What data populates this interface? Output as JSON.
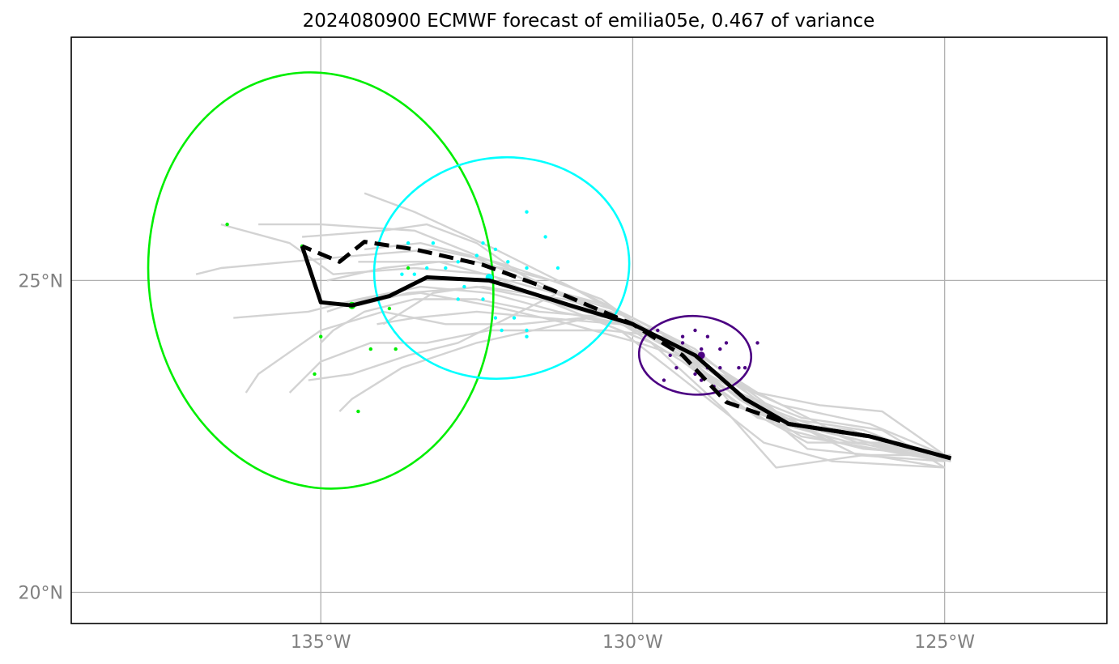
{
  "chart_data": {
    "type": "map-track",
    "title": "2024080900 ECMWF forecast of emilia05e, 0.467 of variance",
    "projection": "PlateCarree",
    "lon_range": [
      -139,
      -122.4
    ],
    "lat_range": [
      19.5,
      28.9
    ],
    "x_ticks": [
      {
        "value": -135,
        "label": "135°W"
      },
      {
        "value": -130,
        "label": "130°W"
      },
      {
        "value": -125,
        "label": "125°W"
      }
    ],
    "y_ticks": [
      {
        "value": 25,
        "label": "25°N"
      },
      {
        "value": 20,
        "label": "20°N"
      }
    ],
    "grid": true,
    "colors": {
      "members": "#d3d3d3",
      "mean": "#000000",
      "hres": "#000000",
      "group_early": "#4b0082",
      "group_mid": "#00ffff",
      "group_late": "#00ee00",
      "grid": "#b0b0b0",
      "tick_text": "#808080"
    },
    "ensemble_mean_track": [
      [
        -124.9,
        22.15
      ],
      [
        -126.2,
        22.5
      ],
      [
        -127.5,
        22.7
      ],
      [
        -128.2,
        23.1
      ],
      [
        -129.0,
        23.8
      ],
      [
        -130.0,
        24.3
      ],
      [
        -131.0,
        24.6
      ],
      [
        -131.8,
        24.85
      ],
      [
        -132.3,
        25.0
      ],
      [
        -133.3,
        25.05
      ],
      [
        -133.9,
        24.75
      ],
      [
        -134.5,
        24.6
      ],
      [
        -135.0,
        24.65
      ],
      [
        -135.3,
        25.55
      ]
    ],
    "hres_track": [
      [
        -124.9,
        22.15
      ],
      [
        -126.2,
        22.5
      ],
      [
        -127.5,
        22.7
      ],
      [
        -128.5,
        23.05
      ],
      [
        -129.2,
        23.8
      ],
      [
        -130.0,
        24.3
      ],
      [
        -131.3,
        24.85
      ],
      [
        -132.4,
        25.25
      ],
      [
        -133.5,
        25.5
      ],
      [
        -134.3,
        25.62
      ],
      [
        -134.7,
        25.3
      ],
      [
        -135.3,
        25.55
      ]
    ],
    "member_tracks": [
      [
        [
          -125,
          22.2
        ],
        [
          -126.5,
          22.4
        ],
        [
          -128,
          22.8
        ],
        [
          -129.2,
          23.7
        ],
        [
          -130.5,
          24.5
        ],
        [
          -132,
          25.2
        ],
        [
          -133.5,
          25.8
        ],
        [
          -135,
          25.9
        ],
        [
          -136,
          25.9
        ]
      ],
      [
        [
          -125,
          22.1
        ],
        [
          -126.4,
          22.2
        ],
        [
          -127.8,
          22.9
        ],
        [
          -129.0,
          23.9
        ],
        [
          -130.6,
          24.7
        ],
        [
          -132.2,
          25.5
        ],
        [
          -133.5,
          26.1
        ],
        [
          -134.3,
          26.4
        ]
      ],
      [
        [
          -125,
          22.0
        ],
        [
          -126.8,
          22.1
        ],
        [
          -127.9,
          22.4
        ],
        [
          -129.3,
          23.5
        ],
        [
          -130.2,
          24.2
        ],
        [
          -131.2,
          24.6
        ],
        [
          -132.3,
          25.1
        ],
        [
          -133.5,
          25.2
        ],
        [
          -134.8,
          25.1
        ],
        [
          -135.5,
          25.6
        ],
        [
          -136.6,
          25.9
        ]
      ],
      [
        [
          -124.9,
          22.1
        ],
        [
          -126.0,
          22.4
        ],
        [
          -127.2,
          22.4
        ],
        [
          -128.3,
          23.0
        ],
        [
          -129.5,
          24.0
        ],
        [
          -130.4,
          24.6
        ],
        [
          -131.5,
          24.9
        ],
        [
          -132.5,
          25.6
        ],
        [
          -133.3,
          25.9
        ],
        [
          -134.0,
          25.8
        ],
        [
          -135.3,
          25.7
        ]
      ],
      [
        [
          -125,
          22.2
        ],
        [
          -126.2,
          22.7
        ],
        [
          -127.6,
          23.0
        ],
        [
          -128.5,
          23.4
        ],
        [
          -129.6,
          24.2
        ],
        [
          -130.8,
          24.4
        ],
        [
          -131.8,
          24.3
        ],
        [
          -133.0,
          24.3
        ],
        [
          -134.0,
          24.5
        ],
        [
          -135.0,
          24.2
        ],
        [
          -136.0,
          23.5
        ],
        [
          -136.2,
          23.2
        ]
      ],
      [
        [
          -125,
          22.1
        ],
        [
          -126.5,
          22.6
        ],
        [
          -127.4,
          22.7
        ],
        [
          -128.6,
          23.3
        ],
        [
          -129.4,
          23.9
        ],
        [
          -130.3,
          24.4
        ],
        [
          -131.5,
          24.5
        ],
        [
          -132.5,
          24.7
        ],
        [
          -133.5,
          24.7
        ],
        [
          -134.3,
          24.5
        ],
        [
          -134.8,
          24.2
        ],
        [
          -135.0,
          24.0
        ]
      ],
      [
        [
          -125,
          22.2
        ],
        [
          -126.3,
          22.3
        ],
        [
          -127.5,
          22.6
        ],
        [
          -128.7,
          23.4
        ],
        [
          -129.5,
          24.1
        ],
        [
          -130.4,
          24.2
        ],
        [
          -131.3,
          24.2
        ],
        [
          -132.3,
          24.2
        ],
        [
          -133.3,
          24.0
        ],
        [
          -134.2,
          24.0
        ],
        [
          -135.0,
          23.7
        ],
        [
          -135.5,
          23.2
        ]
      ],
      [
        [
          -125,
          22.0
        ],
        [
          -126.0,
          22.6
        ],
        [
          -127.3,
          22.8
        ],
        [
          -128.3,
          23.2
        ],
        [
          -129.2,
          24.0
        ],
        [
          -130.2,
          24.5
        ],
        [
          -131.2,
          24.8
        ],
        [
          -132.0,
          24.4
        ],
        [
          -132.8,
          24.0
        ],
        [
          -133.6,
          23.8
        ],
        [
          -134.5,
          23.5
        ],
        [
          -135.2,
          23.4
        ]
      ],
      [
        [
          -124.9,
          22.2
        ],
        [
          -126.3,
          22.2
        ],
        [
          -127.7,
          22.0
        ],
        [
          -128.5,
          22.9
        ],
        [
          -129.7,
          24.0
        ],
        [
          -130.7,
          24.4
        ],
        [
          -131.6,
          24.2
        ],
        [
          -132.5,
          24.0
        ],
        [
          -133.7,
          23.6
        ],
        [
          -134.5,
          23.1
        ],
        [
          -134.7,
          22.9
        ]
      ],
      [
        [
          -125,
          22.1
        ],
        [
          -126.6,
          22.5
        ],
        [
          -127.8,
          23.1
        ],
        [
          -128.8,
          23.6
        ],
        [
          -129.9,
          24.3
        ],
        [
          -131.0,
          24.9
        ],
        [
          -132.2,
          25.3
        ],
        [
          -133.2,
          25.5
        ],
        [
          -134.4,
          25.4
        ],
        [
          -135.5,
          25.3
        ],
        [
          -136.6,
          25.2
        ],
        [
          -137.0,
          25.1
        ]
      ],
      [
        [
          -125,
          22.2
        ],
        [
          -126.1,
          22.5
        ],
        [
          -127.1,
          22.6
        ],
        [
          -128.2,
          23.1
        ],
        [
          -129.3,
          24.0
        ],
        [
          -130.1,
          24.3
        ],
        [
          -131.2,
          24.5
        ],
        [
          -132.3,
          24.8
        ],
        [
          -133.4,
          24.9
        ],
        [
          -134.4,
          24.7
        ],
        [
          -135.2,
          24.5
        ],
        [
          -136.4,
          24.4
        ]
      ],
      [
        [
          -125,
          22.1
        ],
        [
          -126.7,
          22.4
        ],
        [
          -127.6,
          22.8
        ],
        [
          -128.6,
          23.5
        ],
        [
          -129.8,
          24.2
        ],
        [
          -130.9,
          24.7
        ],
        [
          -132.0,
          25.0
        ],
        [
          -133.1,
          25.3
        ],
        [
          -134.0,
          25.2
        ],
        [
          -134.9,
          25.0
        ]
      ],
      [
        [
          -125,
          22.0
        ],
        [
          -126.2,
          22.2
        ],
        [
          -127.2,
          22.3
        ],
        [
          -128.4,
          23.3
        ],
        [
          -129.6,
          24.1
        ],
        [
          -130.8,
          24.6
        ],
        [
          -131.7,
          25.0
        ],
        [
          -132.6,
          25.4
        ],
        [
          -133.4,
          25.6
        ],
        [
          -134.3,
          25.5
        ]
      ],
      [
        [
          -125,
          22.1
        ],
        [
          -126.4,
          22.4
        ],
        [
          -127.7,
          22.9
        ],
        [
          -128.9,
          23.8
        ],
        [
          -130.0,
          24.4
        ],
        [
          -131.1,
          24.7
        ],
        [
          -132.4,
          24.9
        ],
        [
          -133.6,
          24.8
        ],
        [
          -134.4,
          24.6
        ]
      ],
      [
        [
          -125,
          22.2
        ],
        [
          -126.0,
          22.9
        ],
        [
          -127.0,
          23.0
        ],
        [
          -128.0,
          23.2
        ],
        [
          -129.1,
          23.9
        ],
        [
          -130.2,
          24.3
        ],
        [
          -131.4,
          24.4
        ],
        [
          -132.5,
          24.5
        ],
        [
          -133.5,
          24.4
        ],
        [
          -134.1,
          24.3
        ]
      ],
      [
        [
          -125,
          22.2
        ],
        [
          -126.2,
          22.4
        ],
        [
          -127.5,
          22.7
        ],
        [
          -128.4,
          23.0
        ],
        [
          -129.0,
          23.7
        ],
        [
          -129.9,
          24.0
        ],
        [
          -131.0,
          24.3
        ],
        [
          -132.3,
          24.6
        ],
        [
          -133.4,
          24.8
        ],
        [
          -134.3,
          24.7
        ],
        [
          -134.9,
          24.5
        ]
      ],
      [
        [
          -125,
          22.1
        ],
        [
          -126.3,
          22.6
        ],
        [
          -127.6,
          22.8
        ],
        [
          -128.8,
          23.5
        ],
        [
          -129.8,
          24.2
        ],
        [
          -130.5,
          24.7
        ],
        [
          -131.3,
          25.0
        ],
        [
          -132.5,
          25.3
        ],
        [
          -133.5,
          25.3
        ],
        [
          -134.4,
          25.3
        ]
      ],
      [
        [
          -124.9,
          22.1
        ],
        [
          -126.1,
          22.3
        ],
        [
          -127.3,
          22.5
        ],
        [
          -128.3,
          23.1
        ],
        [
          -129.3,
          23.9
        ],
        [
          -130.4,
          24.4
        ],
        [
          -131.5,
          24.7
        ],
        [
          -132.5,
          24.9
        ],
        [
          -133.2,
          24.8
        ],
        [
          -134.0,
          24.3
        ]
      ]
    ],
    "ellipses": [
      {
        "name": "late",
        "center": [
          -135.0,
          25.0
        ],
        "semi_axes": [
          2.75,
          3.35
        ],
        "rotation_deg": -9,
        "color": "#00ee00"
      },
      {
        "name": "mid",
        "center": [
          -132.1,
          25.2
        ],
        "semi_axes": [
          2.05,
          1.77
        ],
        "rotation_deg": -8,
        "color": "#00ffff"
      },
      {
        "name": "early",
        "center": [
          -129.0,
          23.8
        ],
        "semi_axes": [
          0.9,
          0.63
        ],
        "rotation_deg": 3,
        "color": "#4b0082"
      }
    ],
    "position_points": {
      "early": {
        "color": "#4b0082",
        "mean": [
          -128.9,
          23.8
        ],
        "points": [
          [
            -129.6,
            24.2
          ],
          [
            -129.4,
            23.8
          ],
          [
            -129.2,
            24.0
          ],
          [
            -129.0,
            24.2
          ],
          [
            -128.8,
            24.1
          ],
          [
            -128.6,
            23.9
          ],
          [
            -128.3,
            23.6
          ],
          [
            -128.2,
            23.6
          ],
          [
            -128.0,
            24.0
          ],
          [
            -129.3,
            23.6
          ],
          [
            -129.0,
            23.5
          ],
          [
            -128.7,
            23.3
          ],
          [
            -128.9,
            23.9
          ],
          [
            -129.1,
            23.7
          ],
          [
            -129.5,
            23.4
          ],
          [
            -128.9,
            23.4
          ],
          [
            -128.5,
            24.0
          ],
          [
            -128.8,
            23.6
          ],
          [
            -129.2,
            24.1
          ],
          [
            -128.6,
            23.6
          ]
        ]
      },
      "mid": {
        "color": "#00ffff",
        "mean": [
          -132.3,
          25.05
        ],
        "points": [
          [
            -132.5,
            25.4
          ],
          [
            -132.2,
            25.5
          ],
          [
            -131.7,
            26.1
          ],
          [
            -131.4,
            25.7
          ],
          [
            -131.2,
            25.2
          ],
          [
            -131.7,
            25.2
          ],
          [
            -132.0,
            25.3
          ],
          [
            -132.4,
            25.6
          ],
          [
            -133.2,
            25.6
          ],
          [
            -133.6,
            25.6
          ],
          [
            -132.8,
            25.3
          ],
          [
            -133.3,
            25.2
          ],
          [
            -133.7,
            25.1
          ],
          [
            -133.5,
            25.1
          ],
          [
            -133.0,
            25.2
          ],
          [
            -132.7,
            24.9
          ],
          [
            -132.8,
            24.7
          ],
          [
            -132.4,
            24.7
          ],
          [
            -132.2,
            24.4
          ],
          [
            -132.1,
            24.2
          ],
          [
            -131.7,
            24.1
          ],
          [
            -131.9,
            24.4
          ],
          [
            -131.7,
            24.2
          ]
        ]
      },
      "late": {
        "color": "#00ee00",
        "mean": [
          -134.5,
          24.6
        ],
        "points": [
          [
            -136.5,
            25.9
          ],
          [
            -135.3,
            25.55
          ],
          [
            -133.6,
            25.2
          ],
          [
            -133.9,
            24.55
          ],
          [
            -135.0,
            24.1
          ],
          [
            -134.2,
            23.9
          ],
          [
            -133.8,
            23.9
          ],
          [
            -135.1,
            23.5
          ],
          [
            -134.4,
            22.9
          ]
        ]
      }
    }
  }
}
